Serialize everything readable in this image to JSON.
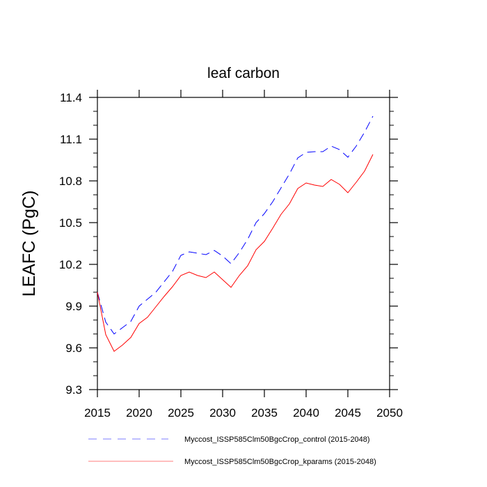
{
  "chart_data": {
    "type": "line",
    "title": "leaf carbon",
    "xlabel": "",
    "ylabel": "LEAFC  (PgC)",
    "xlim": [
      2015,
      2050
    ],
    "ylim": [
      9.3,
      11.4
    ],
    "xticks": [
      2015,
      2020,
      2025,
      2030,
      2035,
      2040,
      2045,
      2050
    ],
    "xtick_labels": [
      "2015",
      "2020",
      "2025",
      "2030",
      "2035",
      "2040",
      "2045",
      "2050"
    ],
    "yticks": [
      9.3,
      9.6,
      9.9,
      10.2,
      10.5,
      10.8,
      11.1,
      11.4
    ],
    "ytick_labels": [
      "9.3",
      "9.6",
      "9.9",
      "10.2",
      "10.5",
      "10.8",
      "11.1",
      "11.4"
    ],
    "y_minor_step": 0.1,
    "grid": false,
    "legend_position": "bottom",
    "x": [
      2015,
      2016,
      2017,
      2018,
      2019,
      2020,
      2021,
      2022,
      2023,
      2024,
      2025,
      2026,
      2027,
      2028,
      2029,
      2030,
      2031,
      2032,
      2033,
      2034,
      2035,
      2036,
      2037,
      2038,
      2039,
      2040,
      2041,
      2042,
      2043,
      2044,
      2045,
      2046,
      2047,
      2048
    ],
    "series": [
      {
        "name": "Myccost_ISSP585Clm50BgcCrop_control (2015-2048)",
        "color": "#0000ff",
        "dash": "dashed",
        "values": [
          10.0,
          9.785,
          9.7,
          9.745,
          9.79,
          9.9,
          9.95,
          10.0,
          10.075,
          10.15,
          10.265,
          10.29,
          10.28,
          10.27,
          10.3,
          10.26,
          10.205,
          10.285,
          10.38,
          10.5,
          10.565,
          10.65,
          10.75,
          10.85,
          10.965,
          11.005,
          11.01,
          11.01,
          11.05,
          11.025,
          10.97,
          11.05,
          11.15,
          11.265
        ]
      },
      {
        "name": "Myccost_ISSP585Clm50BgcCrop_kparams (2015-2048)",
        "color": "#ff0000",
        "dash": "solid",
        "values": [
          10.0,
          9.695,
          9.575,
          9.62,
          9.675,
          9.775,
          9.82,
          9.895,
          9.97,
          10.04,
          10.12,
          10.145,
          10.12,
          10.105,
          10.145,
          10.09,
          10.035,
          10.12,
          10.19,
          10.305,
          10.365,
          10.46,
          10.56,
          10.635,
          10.745,
          10.785,
          10.77,
          10.76,
          10.81,
          10.775,
          10.715,
          10.79,
          10.87,
          10.99
        ]
      }
    ]
  }
}
